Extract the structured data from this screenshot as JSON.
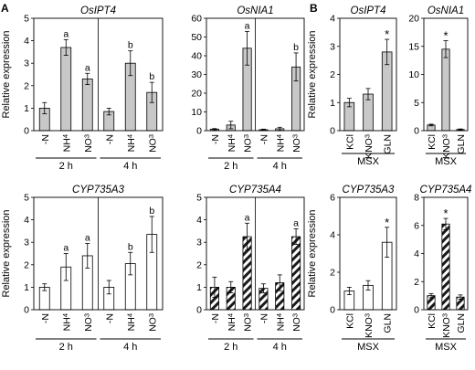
{
  "panel_labels": [
    "A",
    "B"
  ],
  "ylabel": "Relative expression",
  "chart_data": [
    {
      "id": "A-OsIPT4",
      "type": "bar",
      "title": "OsIPT4",
      "ylabel": "Relative expression",
      "ylim": [
        0,
        5
      ],
      "yticks": [
        0,
        1,
        2,
        3,
        4,
        5
      ],
      "categories": [
        "-N",
        "NH4",
        "NO3",
        "-N",
        "NH4",
        "NO3"
      ],
      "groups": [
        {
          "label": "2 h",
          "count": 3
        },
        {
          "label": "4 h",
          "count": 3
        }
      ],
      "values": [
        1.0,
        3.7,
        2.3,
        0.85,
        3.0,
        1.7
      ],
      "errors": [
        0.25,
        0.35,
        0.25,
        0.15,
        0.55,
        0.45
      ],
      "annotations": [
        "",
        "a",
        "a",
        "",
        "b",
        "b"
      ],
      "fill": "gray"
    },
    {
      "id": "A-OsNIA1",
      "type": "bar",
      "title": "OsNIA1",
      "ylim": [
        0,
        60
      ],
      "yticks": [
        0,
        10,
        20,
        30,
        40,
        50,
        60
      ],
      "categories": [
        "-N",
        "NH4",
        "NO3",
        "-N",
        "NH4",
        "NO3"
      ],
      "groups": [
        {
          "label": "2 h",
          "count": 3
        },
        {
          "label": "4 h",
          "count": 3
        }
      ],
      "values": [
        0.8,
        3.0,
        44,
        0.5,
        1.0,
        34
      ],
      "errors": [
        0.3,
        2.0,
        9.0,
        0.3,
        0.8,
        7.5
      ],
      "annotations": [
        "",
        "",
        "a",
        "",
        "",
        "b"
      ],
      "fill": "gray"
    },
    {
      "id": "B-OsIPT4",
      "type": "bar",
      "title": "OsIPT4",
      "ylabel": "Relative expression",
      "ylim": [
        0,
        4
      ],
      "yticks": [
        0,
        1,
        2,
        3,
        4
      ],
      "categories": [
        "KCl",
        "KNO3",
        "GLN"
      ],
      "groups": [
        {
          "label": "MSX",
          "count": 3
        }
      ],
      "values": [
        1.0,
        1.3,
        2.8
      ],
      "errors": [
        0.15,
        0.2,
        0.45
      ],
      "annotations": [
        "",
        "",
        "*"
      ],
      "fill": "gray"
    },
    {
      "id": "B-OsNIA1",
      "type": "bar",
      "title": "OsNIA1",
      "ylim": [
        0,
        20
      ],
      "yticks": [
        0,
        5,
        10,
        15,
        20
      ],
      "categories": [
        "KCl",
        "KNO3",
        "GLN"
      ],
      "groups": [
        {
          "label": "MSX",
          "count": 3
        }
      ],
      "values": [
        1.0,
        14.5,
        0.2
      ],
      "errors": [
        0.15,
        1.5,
        0.1
      ],
      "annotations": [
        "",
        "*",
        ""
      ],
      "fill": "gray"
    },
    {
      "id": "A-CYP735A3",
      "type": "bar",
      "title": "CYP735A3",
      "ylabel": "Relative expression",
      "ylim": [
        0,
        5
      ],
      "yticks": [
        0,
        1,
        2,
        3,
        4,
        5
      ],
      "categories": [
        "-N",
        "NH4",
        "NO3",
        "-N",
        "NH4",
        "NO3"
      ],
      "groups": [
        {
          "label": "2 h",
          "count": 3
        },
        {
          "label": "4 h",
          "count": 3
        }
      ],
      "values": [
        1.0,
        1.9,
        2.4,
        1.0,
        2.05,
        3.35
      ],
      "errors": [
        0.15,
        0.6,
        0.55,
        0.3,
        0.5,
        0.8
      ],
      "annotations": [
        "",
        "a",
        "a",
        "",
        "b",
        "b"
      ],
      "fill": "white"
    },
    {
      "id": "A-CYP735A4",
      "type": "bar",
      "title": "CYP735A4",
      "ylim": [
        0,
        5
      ],
      "yticks": [
        0,
        1,
        2,
        3,
        4,
        5
      ],
      "categories": [
        "-N",
        "NH4",
        "NO3",
        "-N",
        "NH4",
        "NO3"
      ],
      "groups": [
        {
          "label": "2 h",
          "count": 3
        },
        {
          "label": "4 h",
          "count": 3
        }
      ],
      "values": [
        1.0,
        1.0,
        3.25,
        0.95,
        1.2,
        3.25
      ],
      "errors": [
        0.45,
        0.25,
        0.6,
        0.2,
        0.35,
        0.35
      ],
      "annotations": [
        "",
        "",
        "a",
        "",
        "",
        "a"
      ],
      "fill": "hatch"
    },
    {
      "id": "B-CYP735A3",
      "type": "bar",
      "title": "CYP735A3",
      "ylabel": "Relative expression",
      "ylim": [
        0,
        6
      ],
      "yticks": [
        0,
        2,
        4,
        6
      ],
      "categories": [
        "KCl",
        "KNO3",
        "GLN"
      ],
      "groups": [
        {
          "label": "MSX",
          "count": 3
        }
      ],
      "values": [
        1.0,
        1.3,
        3.6
      ],
      "errors": [
        0.2,
        0.25,
        0.8
      ],
      "annotations": [
        "",
        "",
        "*"
      ],
      "fill": "white"
    },
    {
      "id": "B-CYP735A4",
      "type": "bar",
      "title": "CYP735A4",
      "ylim": [
        0,
        8
      ],
      "yticks": [
        0,
        2,
        4,
        6,
        8
      ],
      "categories": [
        "KCl",
        "KNO3",
        "GLN"
      ],
      "groups": [
        {
          "label": "MSX",
          "count": 3
        }
      ],
      "values": [
        1.0,
        6.1,
        0.9
      ],
      "errors": [
        0.15,
        0.4,
        0.15
      ],
      "annotations": [
        "",
        "*",
        ""
      ],
      "fill": "hatch"
    }
  ]
}
